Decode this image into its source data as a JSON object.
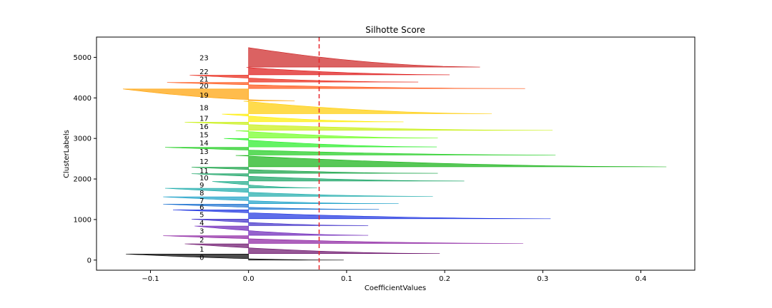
{
  "chart_data": {
    "type": "silhouette",
    "title": "Silhotte Score",
    "xlabel": "CoefficientValues",
    "ylabel": "ClusterLabels",
    "xlim": [
      -0.155,
      0.455
    ],
    "ylim": [
      -250,
      5500
    ],
    "xticks": [
      -0.1,
      0.0,
      0.1,
      0.2,
      0.3,
      0.4
    ],
    "xtick_labels": [
      "−0.1",
      "0.0",
      "0.1",
      "0.2",
      "0.3",
      "0.4"
    ],
    "yticks": [
      0,
      1000,
      2000,
      3000,
      4000,
      5000
    ],
    "ytick_labels": [
      "0",
      "1000",
      "2000",
      "3000",
      "4000",
      "5000"
    ],
    "average_silhouette": 0.072,
    "average_line_color": "#e8272b",
    "clusters": [
      {
        "label": "0",
        "y_lower": 0,
        "y_upper": 150,
        "min": -0.125,
        "max": 0.097,
        "color": "#000000"
      },
      {
        "label": "1",
        "y_lower": 160,
        "y_upper": 400,
        "min": -0.065,
        "max": 0.195,
        "color": "#6a0f6a"
      },
      {
        "label": "2",
        "y_lower": 410,
        "y_upper": 600,
        "min": -0.087,
        "max": 0.28,
        "color": "#8a1ea0"
      },
      {
        "label": "3",
        "y_lower": 610,
        "y_upper": 840,
        "min": -0.055,
        "max": 0.122,
        "color": "#6a20b8"
      },
      {
        "label": "4",
        "y_lower": 850,
        "y_upper": 1010,
        "min": -0.058,
        "max": 0.122,
        "color": "#3a2ac8"
      },
      {
        "label": "5",
        "y_lower": 1020,
        "y_upper": 1240,
        "min": -0.077,
        "max": 0.308,
        "color": "#1a30e0"
      },
      {
        "label": "6",
        "y_lower": 1250,
        "y_upper": 1380,
        "min": -0.087,
        "max": 0.133,
        "color": "#1a70d0"
      },
      {
        "label": "7",
        "y_lower": 1390,
        "y_upper": 1560,
        "min": -0.087,
        "max": 0.153,
        "color": "#1aa0c8"
      },
      {
        "label": "8",
        "y_lower": 1570,
        "y_upper": 1770,
        "min": -0.085,
        "max": 0.188,
        "color": "#18aaaa"
      },
      {
        "label": "9",
        "y_lower": 1780,
        "y_upper": 1940,
        "min": -0.037,
        "max": 0.07,
        "color": "#18aa88"
      },
      {
        "label": "10",
        "y_lower": 1950,
        "y_upper": 2130,
        "min": -0.058,
        "max": 0.22,
        "color": "#10a060"
      },
      {
        "label": "11",
        "y_lower": 2140,
        "y_upper": 2290,
        "min": -0.058,
        "max": 0.193,
        "color": "#10a040"
      },
      {
        "label": "12",
        "y_lower": 2300,
        "y_upper": 2580,
        "min": -0.013,
        "max": 0.426,
        "color": "#10b010"
      },
      {
        "label": "13",
        "y_lower": 2590,
        "y_upper": 2780,
        "min": -0.085,
        "max": 0.313,
        "color": "#18cc18"
      },
      {
        "label": "14",
        "y_lower": 2790,
        "y_upper": 3000,
        "min": -0.025,
        "max": 0.192,
        "color": "#22ee22"
      },
      {
        "label": "15",
        "y_lower": 3010,
        "y_upper": 3190,
        "min": -0.013,
        "max": 0.193,
        "color": "#70ff20"
      },
      {
        "label": "16",
        "y_lower": 3200,
        "y_upper": 3400,
        "min": -0.065,
        "max": 0.31,
        "color": "#c8f010"
      },
      {
        "label": "17",
        "y_lower": 3410,
        "y_upper": 3600,
        "min": -0.027,
        "max": 0.158,
        "color": "#ffee00"
      },
      {
        "label": "18",
        "y_lower": 3610,
        "y_upper": 3920,
        "min": -0.005,
        "max": 0.248,
        "color": "#ffcc00"
      },
      {
        "label": "19",
        "y_lower": 3930,
        "y_upper": 4220,
        "min": -0.128,
        "max": 0.047,
        "color": "#ffa000"
      },
      {
        "label": "20",
        "y_lower": 4230,
        "y_upper": 4380,
        "min": -0.083,
        "max": 0.282,
        "color": "#ff5010"
      },
      {
        "label": "21",
        "y_lower": 4390,
        "y_upper": 4560,
        "min": -0.06,
        "max": 0.173,
        "color": "#e82010"
      },
      {
        "label": "22",
        "y_lower": 4570,
        "y_upper": 4750,
        "min": -0.002,
        "max": 0.205,
        "color": "#dd1111"
      },
      {
        "label": "23",
        "y_lower": 4760,
        "y_upper": 5240,
        "min": 0.0,
        "max": 0.236,
        "color": "#cc2020"
      }
    ]
  }
}
